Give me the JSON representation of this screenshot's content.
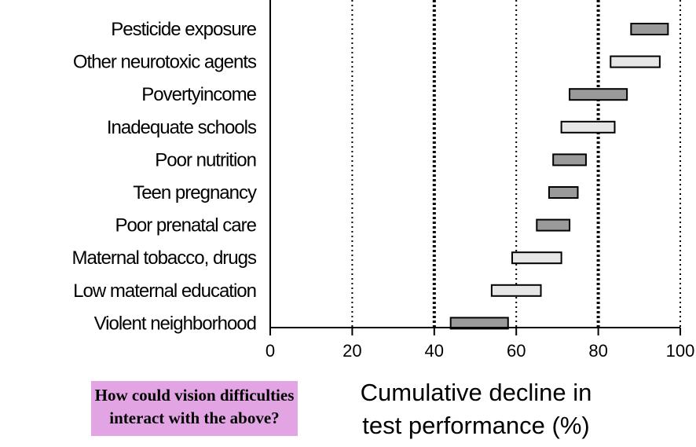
{
  "chart_data": {
    "type": "bar",
    "subtype": "floating-range",
    "categories": [
      "Pesticide exposure",
      "Other neurotoxic agents",
      "Povertyincome",
      "Inadequate schools",
      "Poor nutrition",
      "Teen pregnancy",
      "Poor prenatal care",
      "Maternal tobacco, drugs",
      "Low maternal education",
      "Violent neighborhood"
    ],
    "ranges": [
      [
        88,
        97
      ],
      [
        83,
        95
      ],
      [
        73,
        87
      ],
      [
        71,
        84
      ],
      [
        69,
        77
      ],
      [
        68,
        75
      ],
      [
        65,
        73
      ],
      [
        59,
        71
      ],
      [
        54,
        66
      ],
      [
        44,
        58
      ]
    ],
    "bar_fills": [
      "#9a9a9a",
      "#e6e6e6",
      "#9a9a9a",
      "#e6e6e6",
      "#9a9a9a",
      "#9a9a9a",
      "#9a9a9a",
      "#e6e6e6",
      "#e6e6e6",
      "#9a9a9a"
    ],
    "x_ticks": [
      "0",
      "20",
      "40",
      "60",
      "80",
      "100"
    ],
    "xlim": [
      0,
      100
    ],
    "gridlines": [
      20,
      40,
      60,
      80,
      100
    ],
    "xlabel_line1": "Cumulative decline in",
    "xlabel_line2": "test performance (%)",
    "title": ""
  },
  "callout": {
    "line1": "How could vision difficulties",
    "line2": "interact with the above?"
  }
}
